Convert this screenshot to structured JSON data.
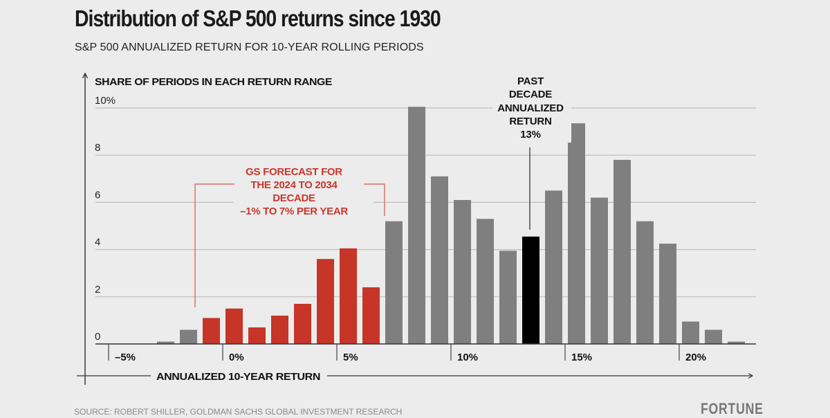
{
  "colors": {
    "background": "#ebeceb",
    "gray_bar": "#7f7f7f",
    "red_bar": "#c63528",
    "highlight_bar": "#000000",
    "grid": "#bdbdbd",
    "red_text": "#c8372d"
  },
  "header": {
    "title": "Distribution of S&P 500 returns since 1930",
    "subtitle": "S&P 500 ANNUALIZED RETURN FOR 10-YEAR ROLLING PERIODS"
  },
  "footer": {
    "source": "SOURCE: ROBERT SHILLER, GOLDMAN SACHS GLOBAL INVESTMENT RESEARCH",
    "brand": "FORTUNE"
  },
  "chart_data": {
    "type": "bar",
    "title": "Distribution of S&P 500 returns since 1930",
    "subtitle": "S&P 500 ANNUALIZED RETURN FOR 10-YEAR ROLLING PERIODS",
    "ylabel": "SHARE OF PERIODS IN EACH RETURN RANGE",
    "xlabel": "ANNUALIZED 10-YEAR RETURN",
    "ylim": [
      0,
      10
    ],
    "xlim": [
      -5,
      22.5
    ],
    "grid": true,
    "yticks": [
      {
        "value": 0,
        "label": "0"
      },
      {
        "value": 2,
        "label": "2"
      },
      {
        "value": 4,
        "label": "4"
      },
      {
        "value": 6,
        "label": "6"
      },
      {
        "value": 8,
        "label": "8"
      },
      {
        "value": 10,
        "label": "10%"
      }
    ],
    "xticks": [
      {
        "value": -5,
        "label": "–5%"
      },
      {
        "value": 0,
        "label": "0%"
      },
      {
        "value": 5,
        "label": "5%"
      },
      {
        "value": 10,
        "label": "10%"
      },
      {
        "value": 15,
        "label": "15%"
      },
      {
        "value": 20,
        "label": "20%"
      }
    ],
    "bin_width": 1,
    "bins": [
      {
        "start": -3,
        "value": 0.1,
        "group": "gray"
      },
      {
        "start": -2,
        "value": 0.6,
        "group": "gray"
      },
      {
        "start": -1,
        "value": 1.1,
        "group": "forecast"
      },
      {
        "start": 0,
        "value": 1.5,
        "group": "forecast"
      },
      {
        "start": 1,
        "value": 0.7,
        "group": "forecast"
      },
      {
        "start": 2,
        "value": 1.2,
        "group": "forecast"
      },
      {
        "start": 3,
        "value": 1.7,
        "group": "forecast"
      },
      {
        "start": 4,
        "value": 3.6,
        "group": "forecast"
      },
      {
        "start": 5,
        "value": 4.05,
        "group": "forecast"
      },
      {
        "start": 6,
        "value": 2.4,
        "group": "forecast"
      },
      {
        "start": 7,
        "value": 5.2,
        "group": "gray"
      },
      {
        "start": 8,
        "value": 10.05,
        "group": "gray"
      },
      {
        "start": 9,
        "value": 7.1,
        "group": "gray"
      },
      {
        "start": 10,
        "value": 6.1,
        "group": "gray"
      },
      {
        "start": 11,
        "value": 5.3,
        "group": "gray"
      },
      {
        "start": 12,
        "value": 3.95,
        "group": "gray"
      },
      {
        "start": 13,
        "value": 4.55,
        "group": "past"
      },
      {
        "start": 14,
        "value": 6.5,
        "group": "gray"
      },
      {
        "start": 15,
        "value": 9.35,
        "group": "gray"
      },
      {
        "start": 16,
        "value": 6.2,
        "group": "gray"
      },
      {
        "start": 17,
        "value": 7.8,
        "group": "gray"
      },
      {
        "start": 18,
        "value": 5.2,
        "group": "gray"
      },
      {
        "start": 19,
        "value": 4.25,
        "group": "gray"
      },
      {
        "start": 20,
        "value": 0.95,
        "group": "gray"
      },
      {
        "start": 21,
        "value": 0.6,
        "group": "gray"
      },
      {
        "start": 22,
        "value": 0.1,
        "group": "gray"
      }
    ],
    "annotations": {
      "forecast": {
        "lines": [
          "GS FORECAST FOR",
          "THE 2024 TO 2034",
          "DECADE",
          "–1% TO 7% PER YEAR"
        ],
        "range": [
          -1,
          7
        ]
      },
      "past": {
        "lines": [
          "PAST",
          "DECADE",
          "ANNUALIZED",
          "RETURN",
          "13%"
        ],
        "value": 13
      }
    }
  }
}
